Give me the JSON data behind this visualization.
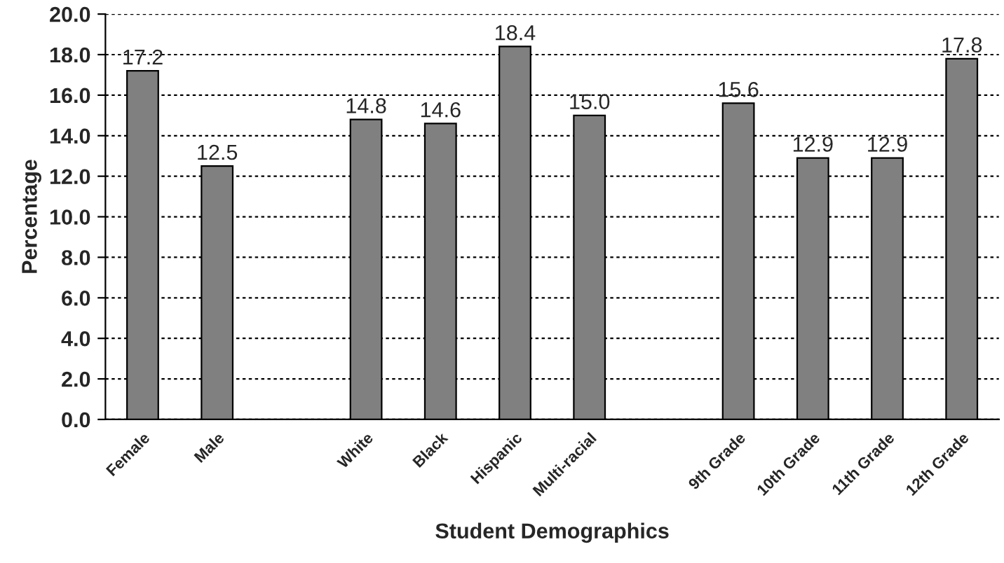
{
  "chart_data": {
    "type": "bar",
    "xlabel": "Student Demographics",
    "ylabel": "Percentage",
    "categories": [
      "Female",
      "Male",
      null,
      "White",
      "Black",
      "Hispanic",
      "Multi-racial",
      null,
      "9th Grade",
      "10th Grade",
      "11th Grade",
      "12th Grade"
    ],
    "values": [
      17.2,
      12.5,
      null,
      14.8,
      14.6,
      18.4,
      15.0,
      null,
      15.6,
      12.9,
      12.9,
      17.8
    ],
    "value_labels": [
      "17.2",
      "12.5",
      null,
      "14.8",
      "14.6",
      "18.4",
      "15.0",
      null,
      "15.6",
      "12.9",
      "12.9",
      "17.8"
    ],
    "color": "#808080",
    "ylim": [
      0,
      20
    ],
    "yticks": [
      {
        "value": 0,
        "label": "0.0"
      },
      {
        "value": 2,
        "label": "2.0"
      },
      {
        "value": 4,
        "label": "4.0"
      },
      {
        "value": 6,
        "label": "6.0"
      },
      {
        "value": 8,
        "label": "8.0"
      },
      {
        "value": 10,
        "label": "10.0"
      },
      {
        "value": 12,
        "label": "12.0"
      },
      {
        "value": 14,
        "label": "14.0"
      },
      {
        "value": 16,
        "label": "16.0"
      },
      {
        "value": 18,
        "label": "18.0"
      },
      {
        "value": 20,
        "label": "20.0"
      }
    ],
    "grid": "y",
    "legend": false
  }
}
